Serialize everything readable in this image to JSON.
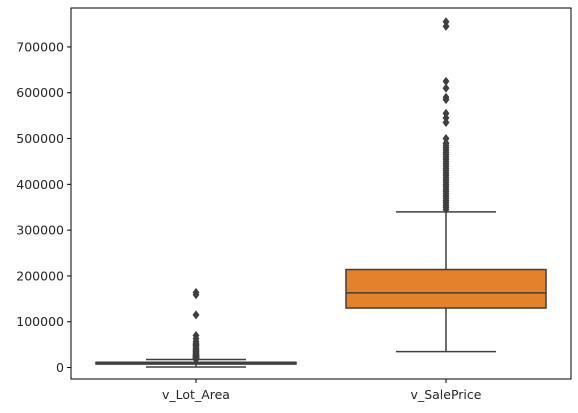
{
  "chart_data": {
    "type": "box",
    "title": "",
    "xlabel": "",
    "ylabel": "",
    "ylim": [
      -25000,
      785000
    ],
    "yticks": [
      0,
      100000,
      200000,
      300000,
      400000,
      500000,
      600000,
      700000
    ],
    "ytick_labels": [
      "0",
      "100000",
      "200000",
      "300000",
      "400000",
      "500000",
      "600000",
      "700000"
    ],
    "grid": false,
    "legend": "none",
    "categories": [
      "v_Lot_Area",
      "v_SalePrice"
    ],
    "boxes": [
      {
        "name": "v_Lot_Area",
        "color": "#3a75b0",
        "whisker_low": 1300,
        "q1": 7550,
        "median": 9480,
        "q3": 11600,
        "whisker_high": 17650,
        "outliers": [
          18000,
          19000,
          20000,
          21000,
          22000,
          23000,
          24000,
          25000,
          26000,
          27500,
          29000,
          31000,
          33000,
          35000,
          37000,
          39500,
          42000,
          45000,
          48000,
          50000,
          53000,
          57000,
          63000,
          70000,
          115000,
          159000,
          164000
        ]
      },
      {
        "name": "v_SalePrice",
        "color": "#e58128",
        "whisker_low": 34900,
        "q1": 129975,
        "median": 163000,
        "q3": 214000,
        "whisker_high": 340000,
        "outliers": [
          345000,
          350000,
          355000,
          360000,
          365000,
          370000,
          375000,
          380000,
          385000,
          390000,
          395000,
          400000,
          405000,
          410000,
          415000,
          420000,
          425000,
          430000,
          435000,
          440000,
          445000,
          450000,
          455000,
          460000,
          465000,
          470000,
          475000,
          480000,
          485000,
          490000,
          500000,
          535000,
          545000,
          555000,
          585000,
          590000,
          610000,
          625000,
          745000,
          755000
        ]
      }
    ]
  }
}
